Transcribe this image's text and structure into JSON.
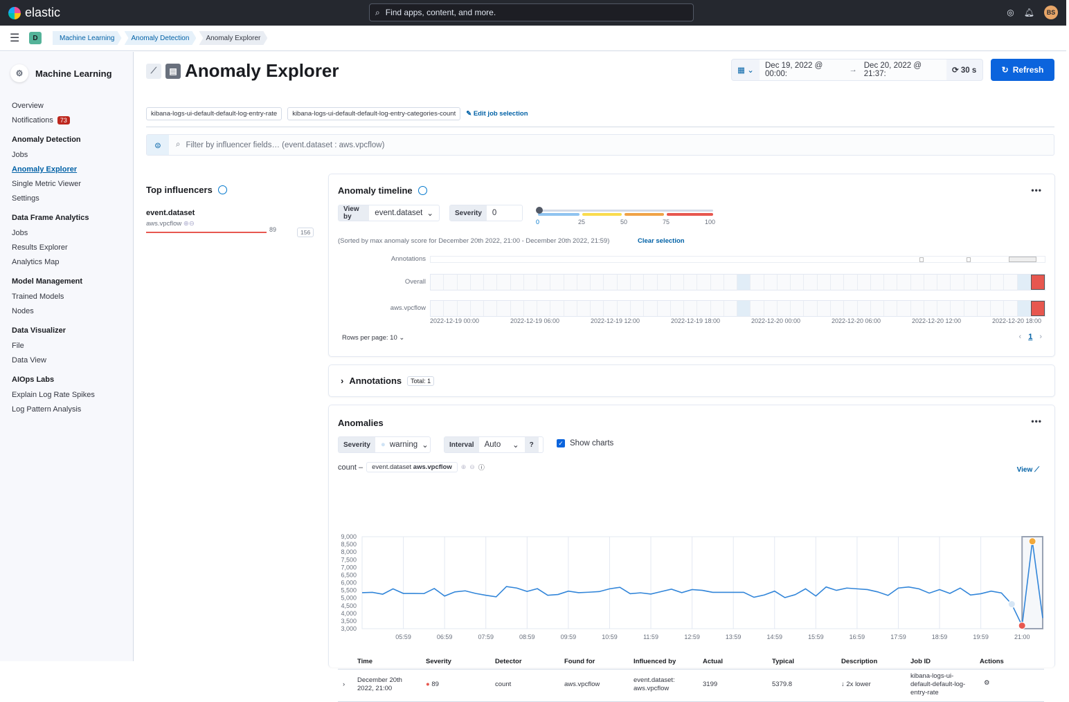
{
  "topbar": {
    "brand": "elastic",
    "search_placeholder": "Find apps, content, and more.",
    "avatar": "BS"
  },
  "breadcrumbs": {
    "space": "D",
    "items": [
      "Machine Learning",
      "Anomaly Detection",
      "Anomaly Explorer"
    ]
  },
  "sidebar": {
    "title": "Machine Learning",
    "groups": [
      {
        "items": [
          {
            "label": "Overview"
          },
          {
            "label": "Notifications",
            "badge": "73"
          }
        ]
      },
      {
        "heading": "Anomaly Detection",
        "items": [
          {
            "label": "Jobs"
          },
          {
            "label": "Anomaly Explorer",
            "active": true
          },
          {
            "label": "Single Metric Viewer"
          },
          {
            "label": "Settings"
          }
        ]
      },
      {
        "heading": "Data Frame Analytics",
        "items": [
          {
            "label": "Jobs"
          },
          {
            "label": "Results Explorer"
          },
          {
            "label": "Analytics Map"
          }
        ]
      },
      {
        "heading": "Model Management",
        "items": [
          {
            "label": "Trained Models"
          },
          {
            "label": "Nodes"
          }
        ]
      },
      {
        "heading": "Data Visualizer",
        "items": [
          {
            "label": "File"
          },
          {
            "label": "Data View"
          }
        ]
      },
      {
        "heading": "AIOps Labs",
        "items": [
          {
            "label": "Explain Log Rate Spikes"
          },
          {
            "label": "Log Pattern Analysis"
          }
        ]
      }
    ]
  },
  "header": {
    "title": "Anomaly Explorer",
    "date_start": "Dec 19, 2022 @ 00:00:",
    "date_end": "Dec 20, 2022 @ 21:37:",
    "refresh_interval": "30 s",
    "refresh_label": "Refresh"
  },
  "jobs": {
    "selected": [
      "kibana-logs-ui-default-default-log-entry-rate",
      "kibana-logs-ui-default-default-log-entry-categories-count"
    ],
    "edit_label": "Edit job selection"
  },
  "filter": {
    "placeholder": "Filter by influencer fields… (event.dataset : aws.vpcflow)"
  },
  "influencers": {
    "title": "Top influencers",
    "field": "event.dataset",
    "value": "aws.vpcflow",
    "score": "89",
    "total": "156",
    "score_fraction": 0.89
  },
  "timeline": {
    "title": "Anomaly timeline",
    "view_by_label": "View by",
    "view_by": "event.dataset",
    "severity_label": "Severity",
    "severity": "0",
    "scale_ticks": [
      "0",
      "25",
      "50",
      "75",
      "100"
    ],
    "sorted_note": "(Sorted by max anomaly score for December 20th 2022, 21:00 - December 20th 2022, 21:59)",
    "clear_selection": "Clear selection",
    "rows": [
      {
        "label": "Annotations"
      },
      {
        "label": "Overall"
      },
      {
        "label": "aws.vpcflow"
      }
    ],
    "cell_count": 46,
    "low_cells": [
      23,
      44
    ],
    "critical_cells": [
      45
    ],
    "colors": {
      "low": "#e1edf7",
      "critical": "#e7574f",
      "empty": "#f9fafc"
    },
    "x_ticks": [
      "2022-12-19 00:00",
      "2022-12-19 06:00",
      "2022-12-19 12:00",
      "2022-12-19 18:00",
      "2022-12-20 00:00",
      "2022-12-20 06:00",
      "2022-12-20 12:00",
      "2022-12-20 18:00"
    ],
    "rows_per_page": "Rows per page: 10",
    "page": "1"
  },
  "annotations": {
    "title": "Annotations",
    "total": "Total: 1"
  },
  "anomalies": {
    "title": "Anomalies",
    "severity_label": "Severity",
    "severity": "warning",
    "interval_label": "Interval",
    "interval": "Auto",
    "show_charts": "Show charts",
    "chart_label": "count –",
    "chart_entity_field": "event.dataset",
    "chart_entity_value": "aws.vpcflow",
    "view_label": "View",
    "columns": [
      "Time",
      "Severity",
      "Detector",
      "Found for",
      "Influenced by",
      "Actual",
      "Typical",
      "Description",
      "Job ID",
      "Actions"
    ],
    "rows": [
      {
        "time": "December 20th 2022, 21:00",
        "severity": "89",
        "detector": "count",
        "found_for": "aws.vpcflow",
        "influenced_by": "event.dataset: aws.vpcflow",
        "actual": "3199",
        "typical": "5379.8",
        "description": "2x lower",
        "job_id": "kibana-logs-ui-default-default-log-entry-rate"
      }
    ]
  },
  "chart_data": {
    "type": "line",
    "ylim": [
      3000,
      9000
    ],
    "y_ticks": [
      "3,000",
      "3,500",
      "4,000",
      "4,500",
      "5,000",
      "5,500",
      "6,000",
      "6,500",
      "7,000",
      "7,500",
      "8,000",
      "8,500",
      "9,000"
    ],
    "x_ticks": [
      "05:59",
      "06:59",
      "07:59",
      "08:59",
      "09:59",
      "10:59",
      "11:59",
      "12:59",
      "13:59",
      "14:59",
      "15:59",
      "16:59",
      "17:59",
      "18:59",
      "19:59",
      "21:00"
    ],
    "x_start": "05:00",
    "x_step_minutes": 15,
    "values": [
      5350,
      5370,
      5250,
      5600,
      5300,
      5300,
      5290,
      5620,
      5130,
      5400,
      5470,
      5300,
      5180,
      5080,
      5750,
      5650,
      5430,
      5610,
      5180,
      5230,
      5450,
      5350,
      5380,
      5420,
      5600,
      5700,
      5280,
      5340,
      5260,
      5420,
      5580,
      5350,
      5550,
      5500,
      5370,
      5370,
      5370,
      5370,
      5050,
      5200,
      5450,
      5030,
      5220,
      5600,
      5130,
      5720,
      5500,
      5650,
      5600,
      5550,
      5400,
      5170,
      5650,
      5720,
      5600,
      5320,
      5550,
      5300,
      5650,
      5200,
      5280,
      5450,
      5330,
      4600,
      3199,
      8700,
      3700
    ],
    "markers": [
      {
        "time": "20:45",
        "value": 4600,
        "severity": "low",
        "color": "#d6e6f5"
      },
      {
        "time": "21:00",
        "value": 3199,
        "severity": "critical",
        "color": "#e7574f"
      },
      {
        "time": "21:15",
        "value": 8700,
        "severity": "major",
        "color": "#f2a93b"
      }
    ],
    "line_color": "#3185d9"
  }
}
